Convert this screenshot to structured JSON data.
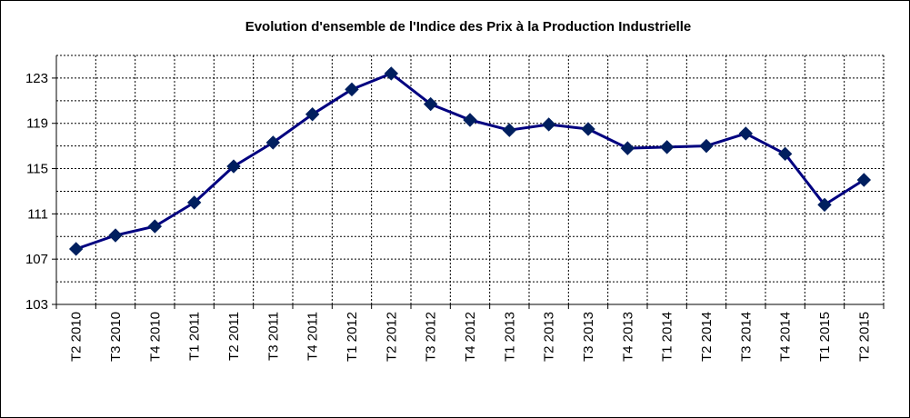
{
  "chart_data": {
    "type": "line",
    "title": "Evolution d'ensemble de l'Indice des Prix à la  Production Industrielle",
    "xlabel": "",
    "ylabel": "",
    "categories": [
      "T2 2010",
      "T3 2010",
      "T4 2010",
      "T1 2011",
      "T2 2011",
      "T3 2011",
      "T4 2011",
      "T1 2012",
      "T2 2012",
      "T3 2012",
      "T4 2012",
      "T1 2013",
      "T2 2013",
      "T3 2013",
      "T4 2013",
      "T1 2014",
      "T2 2014",
      "T3 2014",
      "T4 2014",
      "T1 2015",
      "T2 2015"
    ],
    "series": [
      {
        "values": [
          107.9,
          109.1,
          109.9,
          112.0,
          115.2,
          117.3,
          119.8,
          122.0,
          123.4,
          120.7,
          119.3,
          118.4,
          118.9,
          118.5,
          116.8,
          116.9,
          117.0,
          118.1,
          116.3,
          111.8,
          114.0
        ]
      }
    ],
    "ylim": [
      103,
      125
    ],
    "yticks": [
      103,
      107,
      111,
      115,
      119,
      123
    ],
    "grid": true,
    "legend": "none",
    "colors": {
      "line": "#000080",
      "marker": "#001F5F",
      "grid": "#000000"
    }
  }
}
